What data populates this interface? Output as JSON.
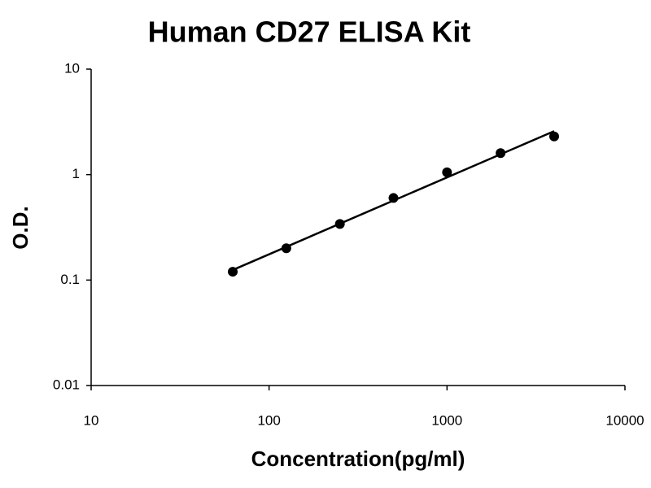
{
  "chart_data": {
    "type": "scatter",
    "title": "Human CD27 ELISA Kit",
    "xlabel": "Concentration(pg/ml)",
    "ylabel": "O.D.",
    "x": [
      62.5,
      125,
      250,
      500,
      1000,
      2000,
      4000
    ],
    "values": [
      0.12,
      0.2,
      0.34,
      0.6,
      1.05,
      1.6,
      2.3
    ],
    "color": "#000000",
    "trendline": "power",
    "xscale": "log",
    "yscale": "log",
    "xlim": [
      10,
      10000
    ],
    "xticks": [
      10,
      100,
      1000,
      10000
    ],
    "ylim": [
      0.01,
      10
    ],
    "yticks": [
      0.01,
      0.1,
      1,
      10
    ]
  }
}
